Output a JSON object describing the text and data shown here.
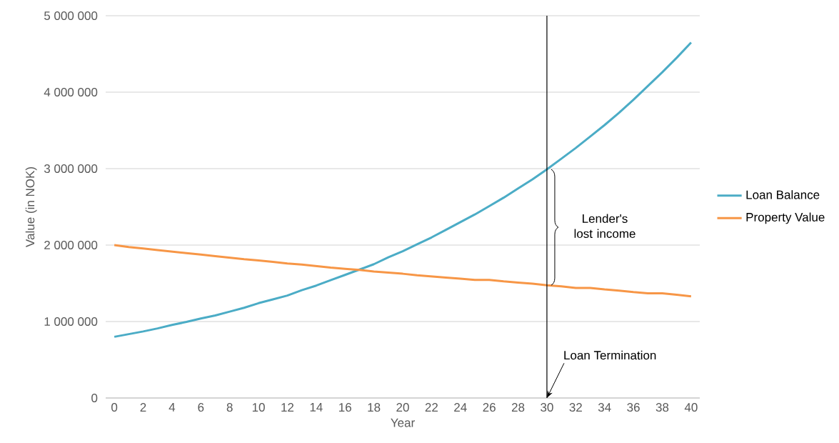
{
  "chart_data": {
    "type": "line",
    "xlabel": "Year",
    "ylabel": "Value (in NOK)",
    "x": [
      0,
      1,
      2,
      3,
      4,
      5,
      6,
      7,
      8,
      9,
      10,
      11,
      12,
      13,
      14,
      15,
      16,
      17,
      18,
      19,
      20,
      21,
      22,
      23,
      24,
      25,
      26,
      27,
      28,
      29,
      30,
      31,
      32,
      33,
      34,
      35,
      36,
      37,
      38,
      39,
      40
    ],
    "series": [
      {
        "name": "Loan Balance",
        "color": "#4bacc6",
        "values": [
          800000,
          835000,
          870000,
          910000,
          955000,
          995000,
          1040000,
          1080000,
          1130000,
          1180000,
          1240000,
          1290000,
          1340000,
          1410000,
          1470000,
          1540000,
          1610000,
          1680000,
          1750000,
          1840000,
          1920000,
          2010000,
          2100000,
          2200000,
          2300000,
          2400000,
          2510000,
          2620000,
          2740000,
          2860000,
          2990000,
          3130000,
          3270000,
          3420000,
          3570000,
          3730000,
          3900000,
          4080000,
          4260000,
          4450000,
          4650000
        ]
      },
      {
        "name": "Property Value",
        "color": "#f79646",
        "values": [
          2000000,
          1975000,
          1955000,
          1935000,
          1915000,
          1895000,
          1875000,
          1855000,
          1835000,
          1815000,
          1800000,
          1780000,
          1760000,
          1745000,
          1725000,
          1705000,
          1690000,
          1675000,
          1655000,
          1640000,
          1625000,
          1605000,
          1590000,
          1575000,
          1560000,
          1545000,
          1545000,
          1525000,
          1510000,
          1495000,
          1475000,
          1460000,
          1440000,
          1440000,
          1420000,
          1405000,
          1385000,
          1370000,
          1370000,
          1350000,
          1330000
        ]
      }
    ],
    "xlim": [
      -0.6,
      40.6
    ],
    "xticks": [
      0,
      2,
      4,
      6,
      8,
      10,
      12,
      14,
      16,
      18,
      20,
      22,
      24,
      26,
      28,
      30,
      32,
      34,
      36,
      38,
      40
    ],
    "ylim": [
      0,
      5000000
    ],
    "yticks": [
      {
        "value": 0,
        "label": "0"
      },
      {
        "value": 1000000,
        "label": "1 000 000"
      },
      {
        "value": 2000000,
        "label": "2 000 000"
      },
      {
        "value": 3000000,
        "label": "3 000 000"
      },
      {
        "value": 4000000,
        "label": "4 000 000"
      },
      {
        "value": 5000000,
        "label": "5 000 000"
      }
    ],
    "grid": "y",
    "legend": "right",
    "line_style": "solid",
    "marker": "none",
    "ref_lines": [
      {
        "axis": "x",
        "value": 30,
        "color": "#000000"
      }
    ],
    "annotations": [
      {
        "text": "Lender's lost income",
        "x": 30,
        "y": 2250000
      },
      {
        "text": "Loan Termination",
        "x": 30,
        "y": 0
      }
    ]
  }
}
